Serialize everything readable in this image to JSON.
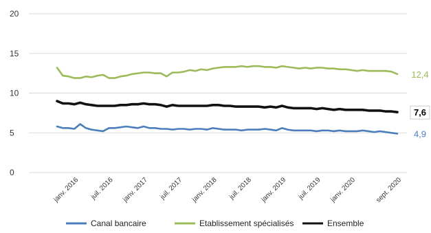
{
  "chart_data": {
    "type": "line",
    "title": "",
    "xlabel": "",
    "ylabel": "",
    "ylim": [
      0,
      20
    ],
    "yticks": [
      "0",
      "5",
      "10",
      "15",
      "20"
    ],
    "grid": true,
    "legend": "bottom",
    "x_tick_labels": [
      "janv. 2016",
      "juil. 2016",
      "janv. 2017",
      "juil. 2017",
      "janv. 2018",
      "juil. 2018",
      "janv. 2019",
      "juil. 2019",
      "janv. 2020",
      "sept. 2020"
    ],
    "x": [
      "2015-10",
      "2015-11",
      "2015-12",
      "2016-01",
      "2016-02",
      "2016-03",
      "2016-04",
      "2016-05",
      "2016-06",
      "2016-07",
      "2016-08",
      "2016-09",
      "2016-10",
      "2016-11",
      "2016-12",
      "2017-01",
      "2017-02",
      "2017-03",
      "2017-04",
      "2017-05",
      "2017-06",
      "2017-07",
      "2017-08",
      "2017-09",
      "2017-10",
      "2017-11",
      "2017-12",
      "2018-01",
      "2018-02",
      "2018-03",
      "2018-04",
      "2018-05",
      "2018-06",
      "2018-07",
      "2018-08",
      "2018-09",
      "2018-10",
      "2018-11",
      "2018-12",
      "2019-01",
      "2019-02",
      "2019-03",
      "2019-04",
      "2019-05",
      "2019-06",
      "2019-07",
      "2019-08",
      "2019-09",
      "2019-10",
      "2019-11",
      "2019-12",
      "2020-01",
      "2020-02",
      "2020-03",
      "2020-04",
      "2020-05",
      "2020-06",
      "2020-07",
      "2020-08",
      "2020-09"
    ],
    "series": [
      {
        "name": "Canal bancaire",
        "color": "#4a7ebb",
        "end_label": "4,9",
        "values": [
          5.8,
          5.6,
          5.6,
          5.5,
          6.1,
          5.6,
          5.4,
          5.3,
          5.2,
          5.6,
          5.6,
          5.7,
          5.8,
          5.7,
          5.6,
          5.8,
          5.6,
          5.6,
          5.5,
          5.5,
          5.4,
          5.5,
          5.5,
          5.4,
          5.5,
          5.5,
          5.4,
          5.6,
          5.5,
          5.4,
          5.4,
          5.4,
          5.3,
          5.4,
          5.4,
          5.4,
          5.5,
          5.4,
          5.3,
          5.6,
          5.4,
          5.3,
          5.3,
          5.3,
          5.3,
          5.2,
          5.3,
          5.3,
          5.2,
          5.3,
          5.2,
          5.2,
          5.2,
          5.3,
          5.2,
          5.1,
          5.2,
          5.1,
          5.0,
          4.9
        ]
      },
      {
        "name": "Etablissement spécialisés",
        "color": "#9bbb59",
        "end_label": "12,4",
        "values": [
          13.2,
          12.2,
          12.1,
          11.9,
          11.9,
          12.1,
          12.0,
          12.2,
          12.3,
          11.9,
          11.9,
          12.1,
          12.2,
          12.4,
          12.5,
          12.6,
          12.6,
          12.5,
          12.5,
          12.1,
          12.6,
          12.6,
          12.7,
          12.9,
          12.8,
          13.0,
          12.9,
          13.1,
          13.2,
          13.3,
          13.3,
          13.3,
          13.4,
          13.3,
          13.4,
          13.4,
          13.3,
          13.3,
          13.2,
          13.4,
          13.3,
          13.2,
          13.1,
          13.2,
          13.1,
          13.2,
          13.2,
          13.1,
          13.1,
          13.0,
          13.0,
          12.9,
          12.8,
          12.9,
          12.8,
          12.8,
          12.8,
          12.8,
          12.7,
          12.4
        ]
      },
      {
        "name": "Ensemble",
        "color": "#111111",
        "end_label": "7,6",
        "values": [
          9.0,
          8.7,
          8.7,
          8.6,
          8.8,
          8.6,
          8.5,
          8.4,
          8.4,
          8.4,
          8.4,
          8.5,
          8.5,
          8.6,
          8.6,
          8.7,
          8.6,
          8.6,
          8.5,
          8.3,
          8.5,
          8.4,
          8.4,
          8.4,
          8.4,
          8.4,
          8.4,
          8.5,
          8.5,
          8.4,
          8.4,
          8.3,
          8.3,
          8.3,
          8.3,
          8.3,
          8.2,
          8.3,
          8.2,
          8.4,
          8.2,
          8.1,
          8.1,
          8.1,
          8.1,
          8.0,
          8.1,
          8.0,
          7.9,
          8.0,
          7.9,
          7.9,
          7.9,
          7.9,
          7.8,
          7.8,
          7.8,
          7.7,
          7.7,
          7.6
        ]
      }
    ]
  }
}
